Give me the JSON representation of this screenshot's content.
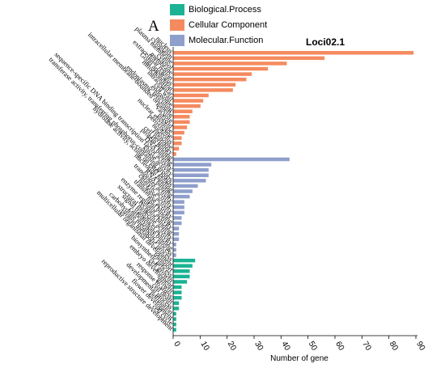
{
  "panel_label": "A",
  "legend": [
    {
      "label": "Biological.Process",
      "color": "#1bb394"
    },
    {
      "label": "Cellular Component",
      "color": "#f58a5f"
    },
    {
      "label": "Molecular.Function",
      "color": "#8e9fcb"
    }
  ],
  "chart_data": {
    "type": "bar",
    "orientation": "horizontal",
    "title": "Loci02.1",
    "xlabel": "Number of gene",
    "ylabel": "",
    "xlim": [
      0,
      90
    ],
    "xticks": [
      0,
      10,
      20,
      30,
      40,
      50,
      60,
      70,
      80,
      90
    ],
    "grid": false,
    "legend_position": "top-left",
    "categories": [
      {
        "label": "nucleus",
        "value": 89,
        "group": "Cellular Component"
      },
      {
        "label": "cytoplasm",
        "value": 56,
        "group": "Cellular Component"
      },
      {
        "label": "plasma membrane",
        "value": 42,
        "group": "Cellular Component"
      },
      {
        "label": "cytosol",
        "value": 35,
        "group": "Cellular Component"
      },
      {
        "label": "membrane",
        "value": 29,
        "group": "Cellular Component"
      },
      {
        "label": "extracellular region",
        "value": 27,
        "group": "Cellular Component"
      },
      {
        "label": "Golgi apparatus",
        "value": 23,
        "group": "Cellular Component"
      },
      {
        "label": "mitochondrion",
        "value": 22,
        "group": "Cellular Component"
      },
      {
        "label": "intracellular",
        "value": 13,
        "group": "Cellular Component"
      },
      {
        "label": "cell wall",
        "value": 11,
        "group": "Cellular Component"
      },
      {
        "label": "endosome",
        "value": 10,
        "group": "Cellular Component"
      },
      {
        "label": "endoplasmic reticulum",
        "value": 7,
        "group": "Cellular Component"
      },
      {
        "label": "intracellular membrane-bounded organelle",
        "value": 6,
        "group": "Cellular Component"
      },
      {
        "label": "vacuole",
        "value": 6,
        "group": "Cellular Component"
      },
      {
        "label": "plastid",
        "value": 5,
        "group": "Cellular Component"
      },
      {
        "label": "nuclear envelope",
        "value": 4,
        "group": "Cellular Component"
      },
      {
        "label": "peroxisome",
        "value": 3,
        "group": "Cellular Component"
      },
      {
        "label": "nucleolus",
        "value": 3,
        "group": "Cellular Component"
      },
      {
        "label": "ribosome",
        "value": 2,
        "group": "Cellular Component"
      },
      {
        "label": "cell periphery",
        "value": 1,
        "group": "Cellular Component"
      },
      {
        "label": "protein binding",
        "value": 43,
        "group": "Molecular.Function"
      },
      {
        "label": "DNA binding",
        "value": 14,
        "group": "Molecular.Function"
      },
      {
        "label": "sequence-specific DNA binding transcription factor activity",
        "value": 13,
        "group": "Molecular.Function"
      },
      {
        "label": "kinase activity",
        "value": 13,
        "group": "Molecular.Function"
      },
      {
        "label": "transferase activity, transferring phosphorus-containing groups",
        "value": 12,
        "group": "Molecular.Function"
      },
      {
        "label": "hydrolase activity, acting on ester bonds",
        "value": 9,
        "group": "Molecular.Function"
      },
      {
        "label": "nucleotide binding",
        "value": 7,
        "group": "Molecular.Function"
      },
      {
        "label": "RNA binding",
        "value": 6,
        "group": "Molecular.Function"
      },
      {
        "label": "transporter activity",
        "value": 4,
        "group": "Molecular.Function"
      },
      {
        "label": "catalytic activity",
        "value": 4,
        "group": "Molecular.Function"
      },
      {
        "label": "nuclease activity",
        "value": 4,
        "group": "Molecular.Function"
      },
      {
        "label": "transferase activity",
        "value": 3,
        "group": "Molecular.Function"
      },
      {
        "label": "lipid binding",
        "value": 3,
        "group": "Molecular.Function"
      },
      {
        "label": "enzyme regulator activity",
        "value": 2,
        "group": "Molecular.Function"
      },
      {
        "label": "receptor binding",
        "value": 2,
        "group": "Molecular.Function"
      },
      {
        "label": "structural molecule activity",
        "value": 2,
        "group": "Molecular.Function"
      },
      {
        "label": "signal transducer activity",
        "value": 1,
        "group": "Molecular.Function"
      },
      {
        "label": "carbohydrate binding",
        "value": 1,
        "group": "Molecular.Function"
      },
      {
        "label": "carbohydrate metabolic process",
        "value": 1,
        "group": "Molecular.Function"
      },
      {
        "label": "protein metabolic process",
        "value": 8,
        "group": "Biological.Process"
      },
      {
        "label": "multicellular organismal development",
        "value": 7,
        "group": "Biological.Process"
      },
      {
        "label": "transport",
        "value": 6,
        "group": "Biological.Process"
      },
      {
        "label": "biosynthetic process",
        "value": 6,
        "group": "Biological.Process"
      },
      {
        "label": "cell growth",
        "value": 5,
        "group": "Biological.Process"
      },
      {
        "label": "embryo development",
        "value": 3,
        "group": "Biological.Process"
      },
      {
        "label": "growth",
        "value": 3,
        "group": "Biological.Process"
      },
      {
        "label": "response to stress",
        "value": 3,
        "group": "Biological.Process"
      },
      {
        "label": "cell death",
        "value": 2,
        "group": "Biological.Process"
      },
      {
        "label": "developmental process",
        "value": 2,
        "group": "Biological.Process"
      },
      {
        "label": "pollination",
        "value": 1,
        "group": "Biological.Process"
      },
      {
        "label": "flower development",
        "value": 1,
        "group": "Biological.Process"
      },
      {
        "label": "cell cycle",
        "value": 1,
        "group": "Biological.Process"
      },
      {
        "label": "reproductive structure development",
        "value": 1,
        "group": "Biological.Process"
      }
    ]
  }
}
